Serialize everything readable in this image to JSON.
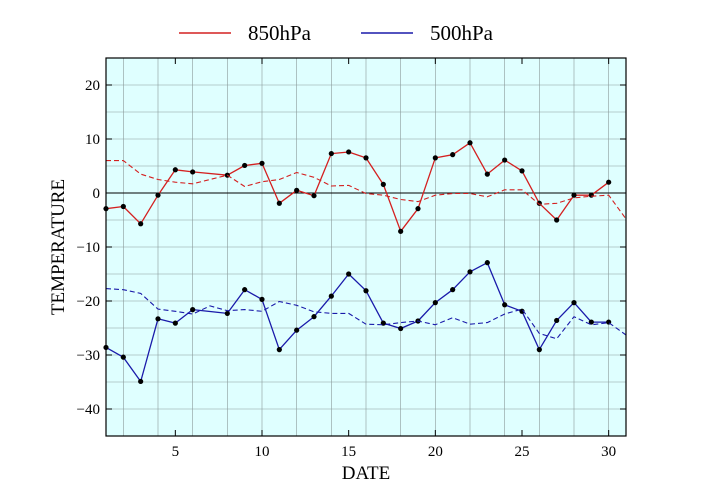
{
  "chart_data": {
    "type": "line",
    "xlabel": "DATE",
    "ylabel": "TEMPERATURE",
    "xlim": [
      1,
      31
    ],
    "ylim": [
      -45,
      25
    ],
    "xticks": [
      5,
      10,
      15,
      20,
      25,
      30
    ],
    "yticks": [
      20,
      10,
      0,
      -10,
      -20,
      -30,
      -40
    ],
    "grid": true,
    "legend_position": "top-center",
    "plot_background": "#dfffff",
    "zero_line": true,
    "series": [
      {
        "name": "850hPa",
        "color": "#d42020",
        "style": "solid-markers",
        "x": [
          1,
          2,
          3,
          4,
          5,
          6,
          8,
          9,
          10,
          11,
          12,
          13,
          14,
          15,
          16,
          17,
          18,
          19,
          20,
          21,
          22,
          23,
          24,
          25,
          26,
          27,
          28,
          29,
          30
        ],
        "values": [
          -2.9,
          -2.5,
          -5.7,
          -0.4,
          4.3,
          3.9,
          3.3,
          5.1,
          5.5,
          -1.9,
          0.5,
          -0.5,
          7.3,
          7.6,
          6.5,
          1.6,
          -7.1,
          -2.9,
          6.5,
          7.1,
          9.3,
          3.5,
          6.1,
          4.1,
          -1.9,
          -5.0,
          -0.4,
          -0.4,
          2.0
        ]
      },
      {
        "name": "500hPa",
        "color": "#1a1aaa",
        "style": "solid-markers",
        "x": [
          1,
          2,
          3,
          4,
          5,
          6,
          8,
          9,
          10,
          11,
          12,
          13,
          14,
          15,
          16,
          17,
          18,
          19,
          20,
          21,
          22,
          23,
          24,
          25,
          26,
          27,
          28,
          29,
          30
        ],
        "values": [
          -28.6,
          -30.4,
          -34.9,
          -23.3,
          -24.1,
          -21.6,
          -22.3,
          -17.9,
          -19.7,
          -29.0,
          -25.4,
          -22.9,
          -19.1,
          -15.0,
          -18.1,
          -24.1,
          -25.1,
          -23.7,
          -20.3,
          -17.9,
          -14.6,
          -12.9,
          -20.7,
          -21.9,
          -29.0,
          -23.6,
          -20.3,
          -23.9,
          -23.9
        ]
      },
      {
        "color": "#d42020",
        "style": "dashed",
        "x": [
          1,
          2,
          3,
          4,
          5,
          6,
          7,
          8,
          9,
          10,
          11,
          12,
          13,
          14,
          15,
          16,
          17,
          18,
          19,
          20,
          21,
          22,
          23,
          24,
          25,
          26,
          27,
          28,
          29,
          30,
          31
        ],
        "values": [
          6.0,
          6.0,
          3.5,
          2.5,
          2.0,
          1.7,
          2.5,
          3.3,
          1.2,
          2.1,
          2.5,
          3.8,
          2.9,
          1.3,
          1.4,
          -0.1,
          -0.4,
          -1.2,
          -1.6,
          -0.4,
          -0.1,
          -0.1,
          -0.7,
          0.6,
          0.6,
          -2.1,
          -1.9,
          -0.9,
          -0.6,
          -0.4,
          -4.8
        ]
      },
      {
        "color": "#1a1aaa",
        "style": "dashed",
        "x": [
          1,
          2,
          3,
          4,
          5,
          6,
          7,
          8,
          9,
          10,
          11,
          12,
          13,
          14,
          15,
          16,
          17,
          18,
          19,
          20,
          21,
          22,
          23,
          24,
          25,
          26,
          27,
          28,
          29,
          30,
          31
        ],
        "values": [
          -17.7,
          -17.9,
          -18.6,
          -21.5,
          -21.9,
          -22.4,
          -20.9,
          -21.8,
          -21.6,
          -21.9,
          -20.1,
          -20.8,
          -22.0,
          -22.3,
          -22.3,
          -24.3,
          -24.4,
          -24.0,
          -23.7,
          -24.4,
          -23.1,
          -24.3,
          -24.0,
          -22.4,
          -21.5,
          -26.0,
          -27.0,
          -22.9,
          -24.4,
          -24.0,
          -26.3
        ]
      }
    ]
  }
}
